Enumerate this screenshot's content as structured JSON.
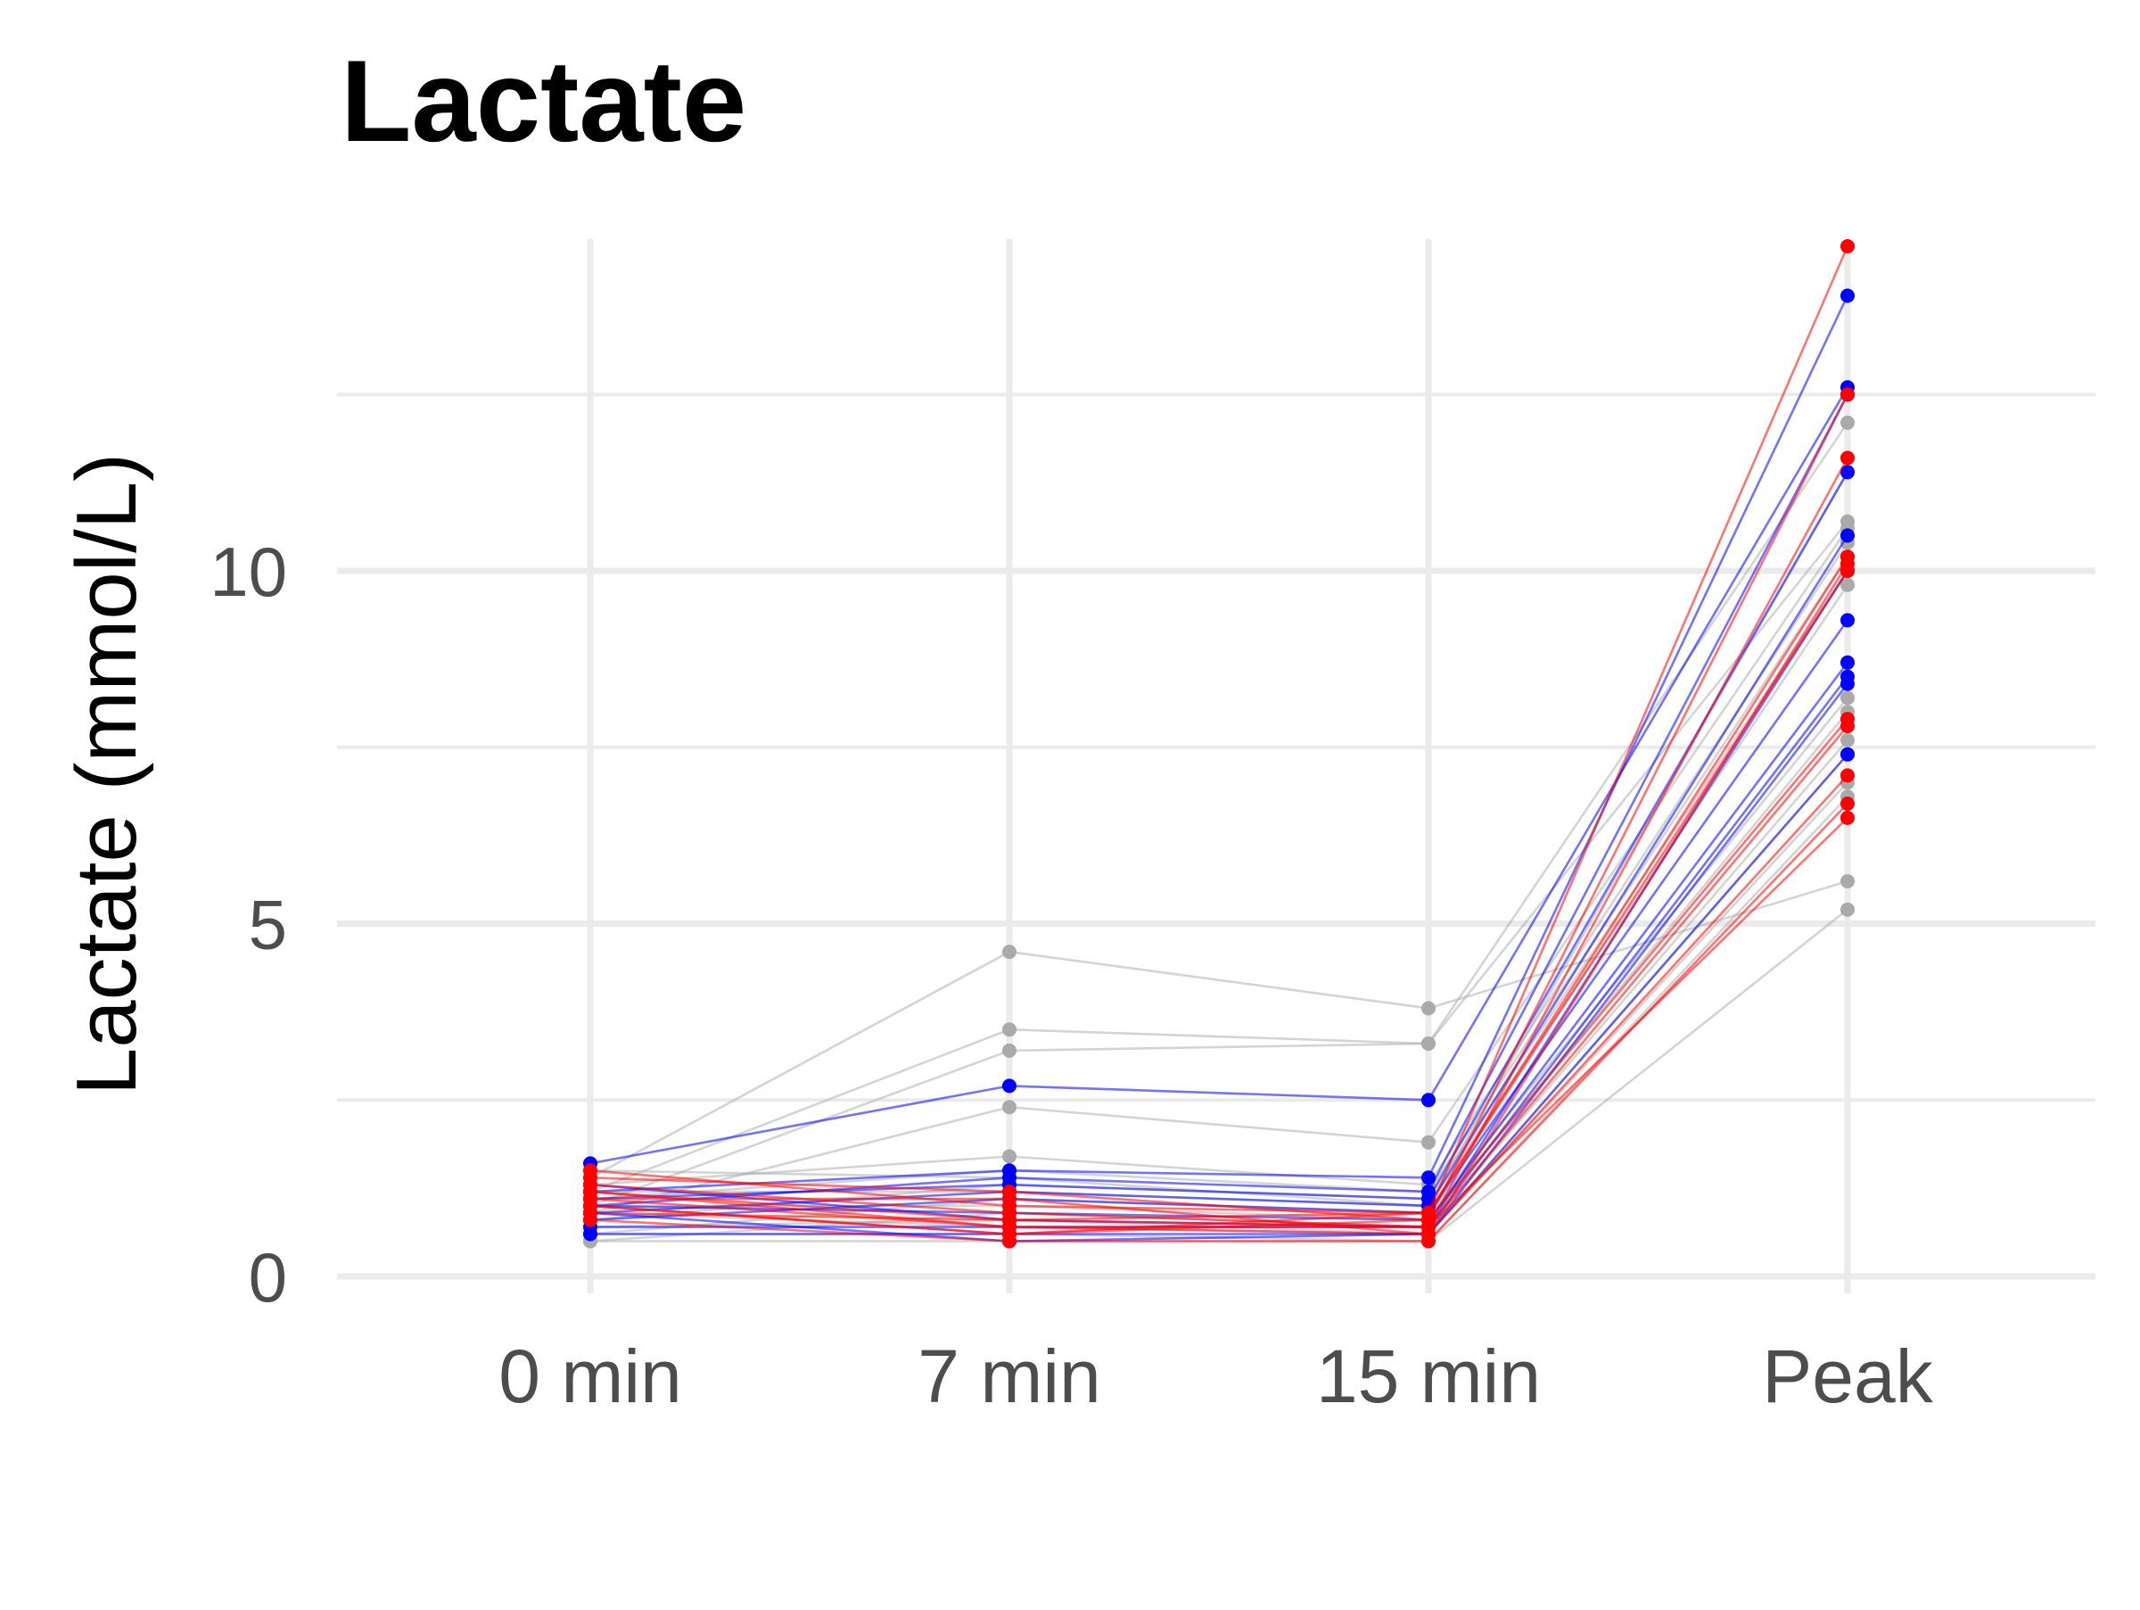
{
  "chart_data": {
    "type": "line",
    "title": "Lactate",
    "xlabel": "",
    "ylabel": "Lactate (mmol/L)",
    "categories": [
      "0 min",
      "7 min",
      "15 min",
      "Peak"
    ],
    "yticks": [
      0,
      5,
      10
    ],
    "ylim": [
      -0.1,
      14.8
    ],
    "grid": true,
    "legend": "none",
    "colors": {
      "gray": "#aaaaaa",
      "blue": "#0000ff",
      "red": "#ff0000"
    },
    "series": [
      {
        "group": "gray",
        "values": [
          1.4,
          4.6,
          3.8,
          5.6
        ]
      },
      {
        "group": "gray",
        "values": [
          1.2,
          3.5,
          3.3,
          12.1
        ]
      },
      {
        "group": "gray",
        "values": [
          1.0,
          3.2,
          3.3,
          10.7
        ]
      },
      {
        "group": "gray",
        "values": [
          0.9,
          2.4,
          1.9,
          10.6
        ]
      },
      {
        "group": "gray",
        "values": [
          1.3,
          1.7,
          1.3,
          10.4
        ]
      },
      {
        "group": "gray",
        "values": [
          1.1,
          1.5,
          1.2,
          10.2
        ]
      },
      {
        "group": "gray",
        "values": [
          0.8,
          1.3,
          1.1,
          10.0
        ]
      },
      {
        "group": "gray",
        "values": [
          1.2,
          1.2,
          1.0,
          9.8
        ]
      },
      {
        "group": "gray",
        "values": [
          0.6,
          1.1,
          0.9,
          8.2
        ]
      },
      {
        "group": "gray",
        "values": [
          1.0,
          1.0,
          0.8,
          8.0
        ]
      },
      {
        "group": "gray",
        "values": [
          0.5,
          0.9,
          0.7,
          7.6
        ]
      },
      {
        "group": "gray",
        "values": [
          0.7,
          0.8,
          0.6,
          7.4
        ]
      },
      {
        "group": "gray",
        "values": [
          0.9,
          0.7,
          0.6,
          7.0
        ]
      },
      {
        "group": "gray",
        "values": [
          0.6,
          0.6,
          0.5,
          6.8
        ]
      },
      {
        "group": "gray",
        "values": [
          0.5,
          0.5,
          0.5,
          5.2
        ]
      },
      {
        "group": "gray",
        "values": [
          1.5,
          1.4,
          1.0,
          11.4
        ]
      },
      {
        "group": "blue",
        "values": [
          1.6,
          2.7,
          2.5,
          12.6
        ]
      },
      {
        "group": "blue",
        "values": [
          1.2,
          1.5,
          1.4,
          13.9
        ]
      },
      {
        "group": "blue",
        "values": [
          1.0,
          1.4,
          1.2,
          12.5
        ]
      },
      {
        "group": "blue",
        "values": [
          1.1,
          1.3,
          1.1,
          11.4
        ]
      },
      {
        "group": "blue",
        "values": [
          0.9,
          1.2,
          1.0,
          10.5
        ]
      },
      {
        "group": "blue",
        "values": [
          0.8,
          1.1,
          0.9,
          9.3
        ]
      },
      {
        "group": "blue",
        "values": [
          1.0,
          0.9,
          0.8,
          8.7
        ]
      },
      {
        "group": "blue",
        "values": [
          0.7,
          0.7,
          0.7,
          8.5
        ]
      },
      {
        "group": "blue",
        "values": [
          0.6,
          0.6,
          0.6,
          8.4
        ]
      },
      {
        "group": "blue",
        "values": [
          0.9,
          0.5,
          0.6,
          7.4
        ]
      },
      {
        "group": "blue",
        "values": [
          1.3,
          0.8,
          0.7,
          10.0
        ]
      },
      {
        "group": "red",
        "values": [
          1.5,
          1.0,
          0.9,
          14.6
        ]
      },
      {
        "group": "red",
        "values": [
          1.4,
          1.2,
          0.8,
          12.5
        ]
      },
      {
        "group": "red",
        "values": [
          1.3,
          0.9,
          0.7,
          11.6
        ]
      },
      {
        "group": "red",
        "values": [
          1.2,
          0.8,
          0.9,
          10.2
        ]
      },
      {
        "group": "red",
        "values": [
          1.1,
          0.7,
          0.6,
          10.1
        ]
      },
      {
        "group": "red",
        "values": [
          1.0,
          0.6,
          0.8,
          7.9
        ]
      },
      {
        "group": "red",
        "values": [
          0.9,
          0.8,
          0.7,
          7.8
        ]
      },
      {
        "group": "red",
        "values": [
          1.1,
          1.1,
          0.6,
          7.1
        ]
      },
      {
        "group": "red",
        "values": [
          0.8,
          0.5,
          0.5,
          6.7
        ]
      },
      {
        "group": "red",
        "values": [
          1.2,
          0.7,
          0.7,
          6.5
        ]
      },
      {
        "group": "red",
        "values": [
          1.0,
          0.6,
          0.9,
          10.0
        ]
      }
    ]
  }
}
